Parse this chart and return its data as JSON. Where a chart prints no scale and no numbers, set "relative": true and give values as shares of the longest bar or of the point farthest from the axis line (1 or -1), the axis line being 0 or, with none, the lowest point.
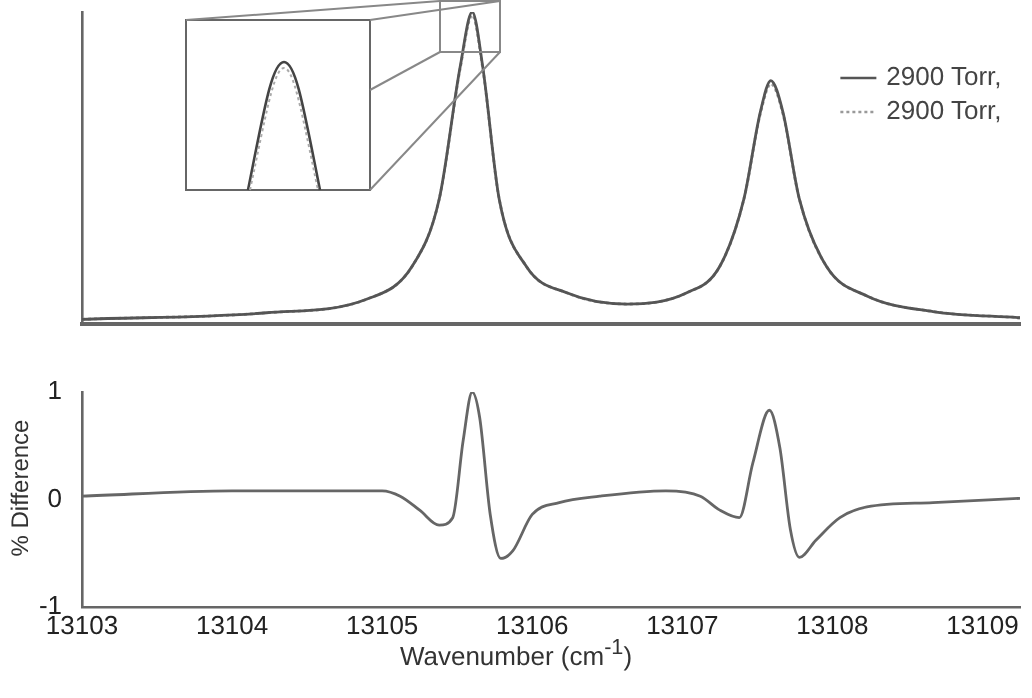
{
  "chart_data": [
    {
      "type": "line",
      "relative": true,
      "xlim": [
        13103,
        13109.25
      ],
      "xticks": [
        13103,
        13104,
        13105,
        13106,
        13107,
        13108,
        13109
      ],
      "tick_labels": false,
      "grid": false,
      "legend": "top right",
      "marker": "none",
      "series": [
        {
          "name": "2900 Torr,",
          "color": "#555555",
          "line_style": "solid",
          "x": [
            13103,
            13104.23,
            13104.9,
            13105.2,
            13105.38,
            13105.52,
            13105.6,
            13105.67,
            13105.78,
            13105.96,
            13106.23,
            13106.63,
            13107.03,
            13107.25,
            13107.41,
            13107.52,
            13107.59,
            13107.67,
            13107.78,
            13107.96,
            13108.23,
            13108.67,
            13109.25
          ],
          "values": [
            0.015,
            0.036,
            0.08,
            0.185,
            0.4,
            0.825,
            1,
            0.825,
            0.4,
            0.185,
            0.1,
            0.064,
            0.1,
            0.185,
            0.4,
            0.68,
            0.78,
            0.68,
            0.4,
            0.185,
            0.09,
            0.04,
            0.02
          ]
        },
        {
          "name": "2900 Torr,",
          "color": "#999999",
          "line_style": "dotted",
          "x": [
            13103,
            13104.23,
            13104.9,
            13105.2,
            13105.38,
            13105.52,
            13105.6,
            13105.67,
            13105.78,
            13105.96,
            13106.23,
            13106.63,
            13107.03,
            13107.25,
            13107.41,
            13107.52,
            13107.59,
            13107.67,
            13107.78,
            13107.96,
            13108.23,
            13108.67,
            13109.25
          ],
          "values": [
            0.015,
            0.036,
            0.08,
            0.185,
            0.4,
            0.82,
            0.99,
            0.82,
            0.4,
            0.185,
            0.1,
            0.064,
            0.1,
            0.185,
            0.4,
            0.675,
            0.77,
            0.675,
            0.4,
            0.185,
            0.09,
            0.04,
            0.02
          ]
        }
      ]
    },
    {
      "type": "line",
      "xlabel": "Wavenumber (cm$^{-1}$)",
      "ylabel": "% Difference",
      "xlim": [
        13103,
        13109.25
      ],
      "xticks": [
        13103,
        13104,
        13105,
        13106,
        13107,
        13108,
        13109
      ],
      "ylim": [
        -1,
        1
      ],
      "yticks": [
        -1,
        0,
        1
      ],
      "grid": false,
      "legend": false,
      "marker": "none",
      "series": [
        {
          "color": "#666666",
          "line_style": "solid",
          "x": [
            13103,
            13104,
            13105,
            13105.12,
            13105.25,
            13105.38,
            13105.47,
            13105.54,
            13105.6,
            13105.65,
            13105.72,
            13105.79,
            13105.87,
            13106,
            13106.18,
            13106.45,
            13106.89,
            13107.12,
            13107.25,
            13107.38,
            13107.47,
            13107.58,
            13107.65,
            13107.72,
            13107.78,
            13107.89,
            13108.05,
            13108.23,
            13108.67,
            13109.25
          ],
          "values": [
            0.03,
            0.08,
            0.08,
            0.03,
            -0.1,
            -0.24,
            -0.17,
            0.55,
            1,
            0.76,
            -0.14,
            -0.55,
            -0.48,
            -0.14,
            -0.03,
            0.03,
            0.08,
            0.03,
            -0.1,
            -0.17,
            0.34,
            0.83,
            0.48,
            -0.28,
            -0.54,
            -0.38,
            -0.17,
            -0.07,
            -0.03,
            0.01
          ]
        }
      ]
    }
  ]
}
